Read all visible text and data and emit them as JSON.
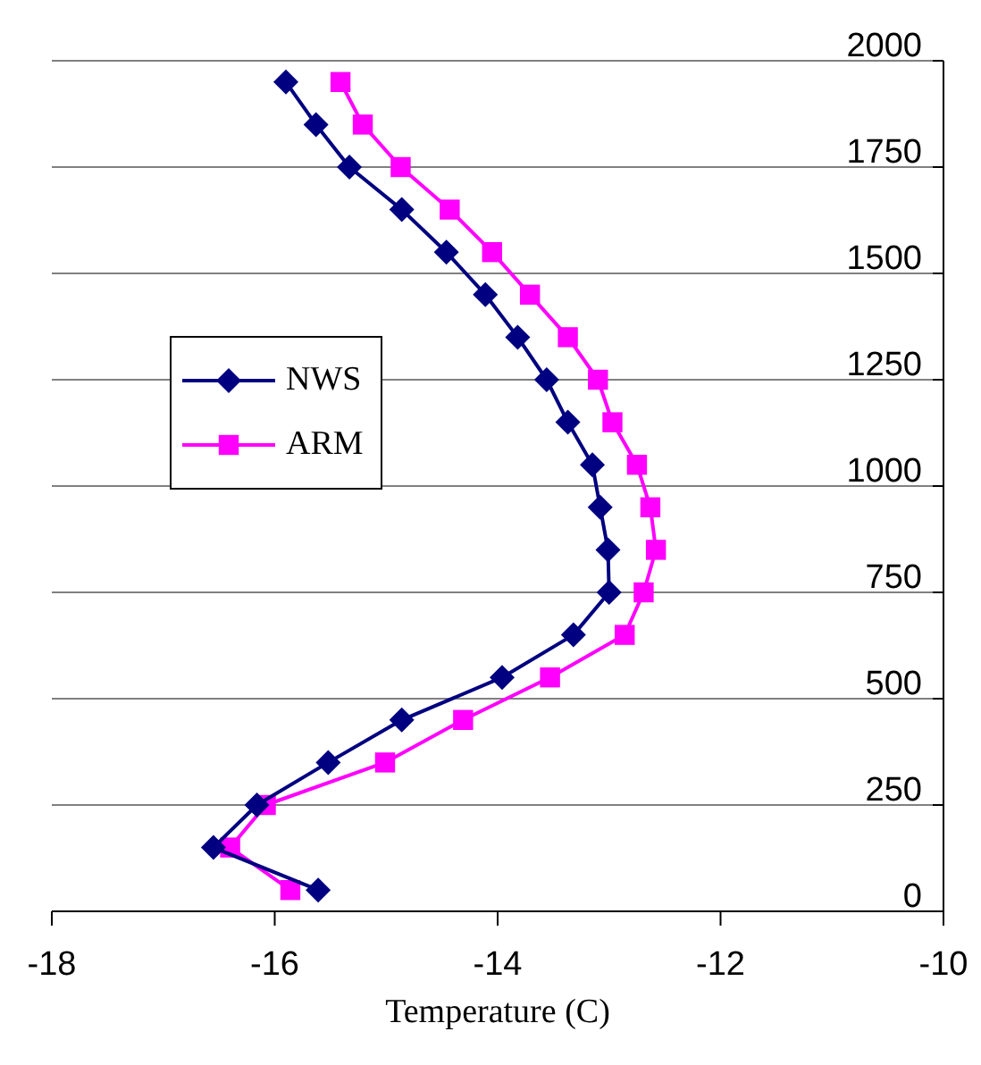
{
  "chart_data": {
    "type": "line",
    "xlabel": "Temperature (C)",
    "xlim": [
      -18,
      -10
    ],
    "xticks": [
      -18,
      -16,
      -14,
      -12,
      -10
    ],
    "ylim": [
      0,
      2000
    ],
    "yticks": [
      0,
      250,
      500,
      750,
      1000,
      1250,
      1500,
      1750,
      2000
    ],
    "grid": "y",
    "legend": "left",
    "series": [
      {
        "name": "NWS",
        "color": "#000080",
        "marker": "diamond",
        "x": [
          -15.61,
          -16.55,
          -16.16,
          -15.52,
          -14.86,
          -13.96,
          -13.32,
          -13.0,
          -13.01,
          -13.08,
          -13.15,
          -13.37,
          -13.56,
          -13.82,
          -14.11,
          -14.46,
          -14.86,
          -15.33,
          -15.63,
          -15.9
        ],
        "values": [
          50,
          150,
          250,
          350,
          450,
          550,
          650,
          750,
          850,
          950,
          1050,
          1150,
          1250,
          1350,
          1450,
          1550,
          1650,
          1750,
          1850,
          1950
        ]
      },
      {
        "name": "ARM",
        "color": "#ff00ff",
        "marker": "square",
        "x": [
          -15.86,
          -16.4,
          -16.08,
          -15.01,
          -14.31,
          -13.53,
          -12.86,
          -12.69,
          -12.58,
          -12.63,
          -12.75,
          -12.97,
          -13.1,
          -13.37,
          -13.71,
          -14.05,
          -14.43,
          -14.87,
          -15.21,
          -15.41
        ],
        "values": [
          50,
          150,
          250,
          350,
          450,
          550,
          650,
          750,
          850,
          950,
          1050,
          1150,
          1250,
          1350,
          1450,
          1550,
          1650,
          1750,
          1850,
          1950
        ]
      }
    ]
  }
}
